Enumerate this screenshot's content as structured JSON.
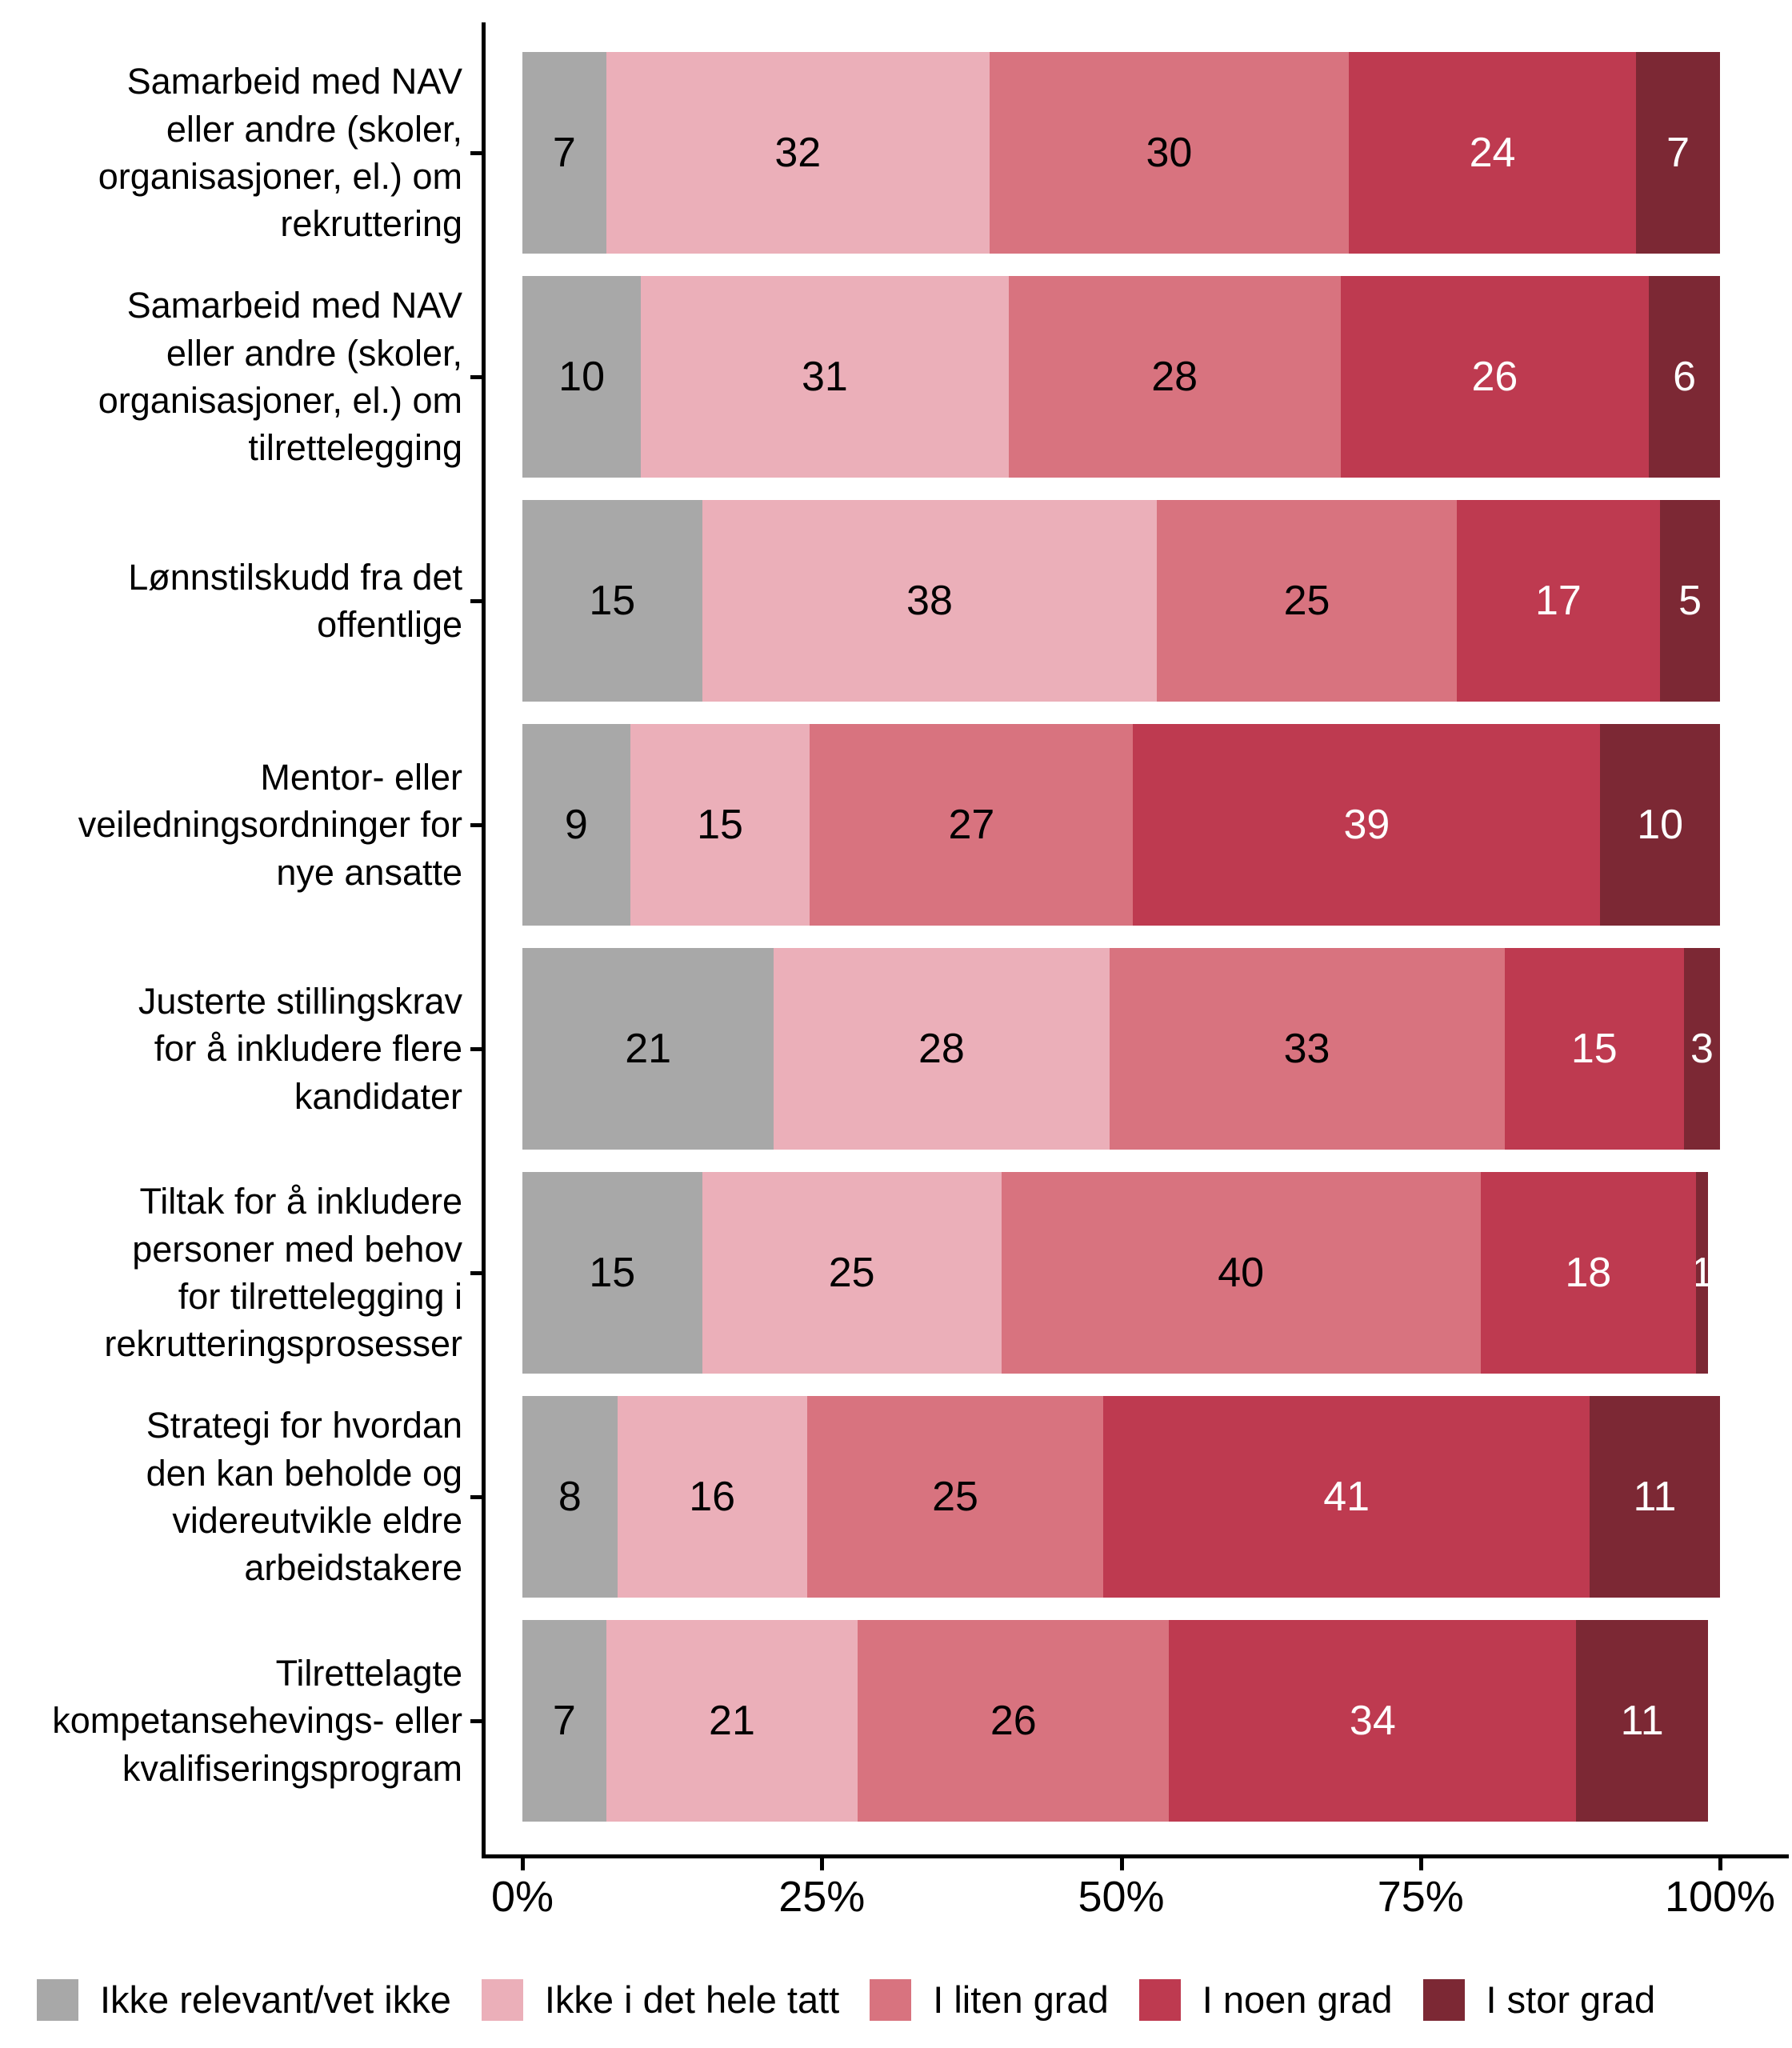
{
  "chart_data": {
    "type": "bar",
    "orientation": "horizontal-stacked",
    "unit": "percent",
    "title": "",
    "xlabel": "",
    "ylabel": "",
    "xlim": [
      0,
      100
    ],
    "grid": false,
    "legend_position": "bottom",
    "x_ticks": [
      "0%",
      "25%",
      "50%",
      "75%",
      "100%"
    ],
    "x_tick_values": [
      0,
      25,
      50,
      75,
      100
    ],
    "categories": [
      "Samarbeid med NAV\neller andre (skoler,\norganisasjoner, el.) om\nrekruttering",
      "Samarbeid med NAV\neller andre (skoler,\norganisasjoner, el.) om\ntilrettelegging",
      "Lønnstilskudd fra det\noffentlige",
      "Mentor- eller\nveiledningsordninger for\nnye ansatte",
      "Justerte stillingskrav\nfor å inkludere flere\nkandidater",
      "Tiltak for å inkludere\npersoner med behov\nfor tilrettelegging i\nrekrutteringsprosesser",
      "Strategi for hvordan\nden kan beholde og\nvidereutvikle eldre\narbeidstakere",
      "Tilrettelagte\nkompetansehevings- eller\nkvalifiseringsprogram"
    ],
    "series": [
      {
        "name": "Ikke relevant/vet ikke",
        "color": "#A8A8A8",
        "label_color": "#000000",
        "values": [
          7,
          10,
          15,
          9,
          21,
          15,
          8,
          7
        ]
      },
      {
        "name": "Ikke i det hele tatt",
        "color": "#EBAFB9",
        "label_color": "#000000",
        "values": [
          32,
          31,
          38,
          15,
          28,
          25,
          16,
          21
        ]
      },
      {
        "name": "I liten grad",
        "color": "#D8737F",
        "label_color": "#000000",
        "values": [
          30,
          28,
          25,
          27,
          33,
          40,
          25,
          26
        ]
      },
      {
        "name": "I noen grad",
        "color": "#BE3A50",
        "label_color": "#ffffff",
        "values": [
          24,
          26,
          17,
          39,
          15,
          18,
          41,
          34
        ]
      },
      {
        "name": "I stor grad",
        "color": "#7C2834",
        "label_color": "#ffffff",
        "values": [
          7,
          6,
          5,
          10,
          3,
          1,
          11,
          11
        ]
      }
    ],
    "axis_color": "#000000",
    "text_color": "#000000"
  }
}
